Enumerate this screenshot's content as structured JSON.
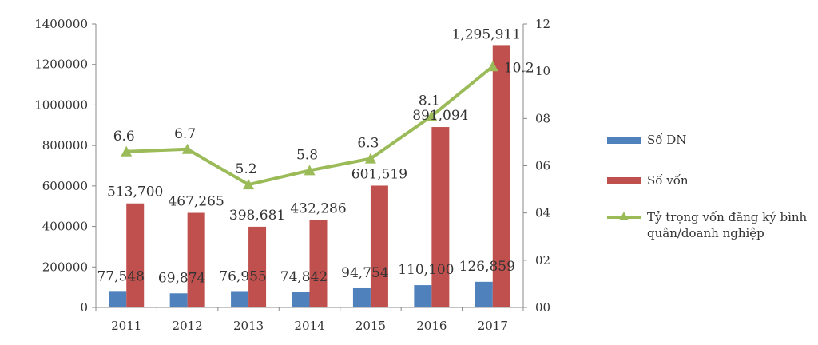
{
  "chart_data": {
    "type": "bar",
    "categories": [
      "2011",
      "2012",
      "2013",
      "2014",
      "2015",
      "2016",
      "2017"
    ],
    "series": [
      {
        "name": "Số DN",
        "kind": "bar",
        "axis": "left",
        "color": "#4f81bd",
        "values": [
          77548,
          69874,
          76955,
          74842,
          94754,
          110100,
          126859
        ],
        "labels": [
          "77,548",
          "69,874",
          "76,955",
          "74,842",
          "94,754",
          "110,100",
          "126,859"
        ]
      },
      {
        "name": "Số vốn",
        "kind": "bar",
        "axis": "left",
        "color": "#c0504d",
        "values": [
          513700,
          467265,
          398681,
          432286,
          601519,
          891094,
          1295911
        ],
        "labels": [
          "513,700",
          "467,265",
          "398,681",
          "432,286",
          "601,519",
          "891,094",
          "1,295,911"
        ]
      },
      {
        "name": "Tỷ trọng vốn đăng ký bình quân/doanh nghiệp",
        "kind": "line",
        "axis": "right",
        "color": "#9bbb59",
        "values": [
          6.6,
          6.7,
          5.2,
          5.8,
          6.3,
          8.1,
          10.2
        ],
        "labels": [
          "6.6",
          "6.7",
          "5.2",
          "5.8",
          "6.3",
          "8.1",
          "10.2"
        ]
      }
    ],
    "ylim": [
      0,
      1400000
    ],
    "yticks": [
      "0",
      "200000",
      "400000",
      "600000",
      "800000",
      "1000000",
      "1200000",
      "1400000"
    ],
    "y2lim": [
      0,
      12
    ],
    "y2ticks": [
      "00",
      "02",
      "04",
      "06",
      "08",
      "10",
      "12"
    ],
    "grid": false,
    "legend_position": "right"
  },
  "legend": {
    "items": [
      {
        "label": "Số DN"
      },
      {
        "label": "Số vốn"
      },
      {
        "label": "Tỷ trọng vốn đăng ký bình quân/doanh nghiệp"
      }
    ]
  }
}
